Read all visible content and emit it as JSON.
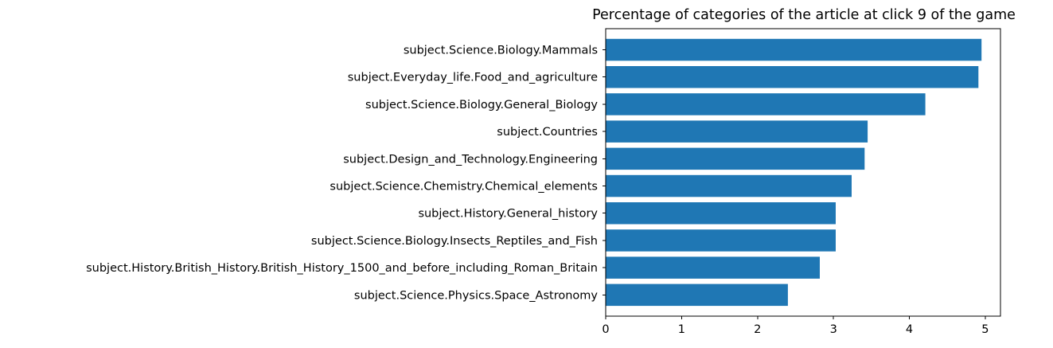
{
  "chart_data": {
    "type": "bar",
    "orientation": "horizontal",
    "title": "Percentage of categories of the article at click 9 of the game",
    "xlabel": "",
    "ylabel": "",
    "categories": [
      "subject.Science.Biology.Mammals",
      "subject.Everyday_life.Food_and_agriculture",
      "subject.Science.Biology.General_Biology",
      "subject.Countries",
      "subject.Design_and_Technology.Engineering",
      "subject.Science.Chemistry.Chemical_elements",
      "subject.History.General_history",
      "subject.Science.Biology.Insects_Reptiles_and_Fish",
      "subject.History.British_History.British_History_1500_and_before_including_Roman_Britain",
      "subject.Science.Physics.Space_Astronomy"
    ],
    "values": [
      4.95,
      4.91,
      4.21,
      3.45,
      3.41,
      3.24,
      3.03,
      3.03,
      2.82,
      2.4
    ],
    "xlim": [
      0,
      5.2
    ],
    "xticks": [
      "0",
      "1",
      "2",
      "3",
      "4",
      "5"
    ],
    "grid": false,
    "color": "#1f77b4"
  }
}
